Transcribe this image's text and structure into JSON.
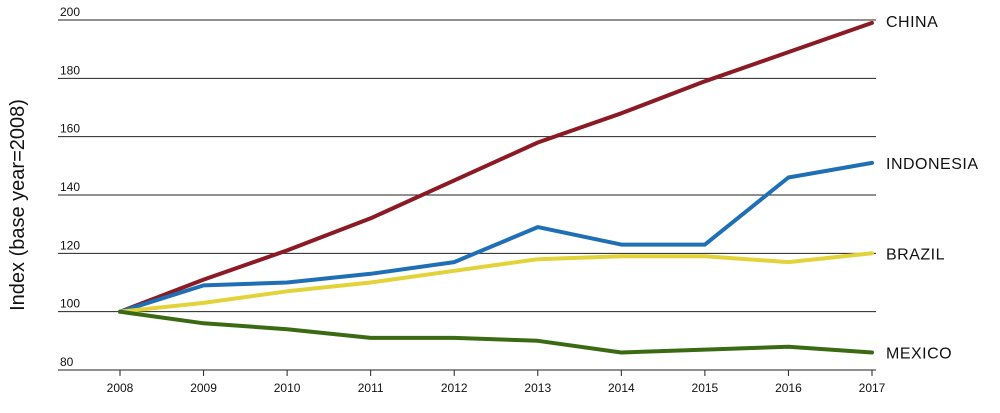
{
  "chart_data": {
    "type": "line",
    "title": "",
    "xlabel": "",
    "ylabel": "Index (base year=2008)",
    "ylim": [
      80,
      200
    ],
    "yticks": [
      80,
      100,
      120,
      140,
      160,
      180,
      200
    ],
    "x": [
      2008,
      2009,
      2010,
      2011,
      2012,
      2013,
      2014,
      2015,
      2016,
      2017
    ],
    "grid": "horizontal",
    "legend": "direct labels at line ends (right)",
    "series": [
      {
        "name": "CHINA",
        "color": "#8b1a24",
        "values": [
          100,
          111,
          121,
          132,
          145,
          158,
          168,
          179,
          189,
          199
        ]
      },
      {
        "name": "INDONESIA",
        "color": "#1f6fb5",
        "values": [
          100,
          109,
          110,
          113,
          117,
          129,
          123,
          123,
          146,
          151
        ]
      },
      {
        "name": "BRAZIL",
        "color": "#e2d33a",
        "values": [
          100,
          103,
          107,
          110,
          114,
          118,
          119,
          119,
          117,
          120
        ]
      },
      {
        "name": "MEXICO",
        "color": "#3a6b12",
        "values": [
          100,
          96,
          94,
          91,
          91,
          90,
          86,
          87,
          88,
          86
        ]
      }
    ]
  }
}
